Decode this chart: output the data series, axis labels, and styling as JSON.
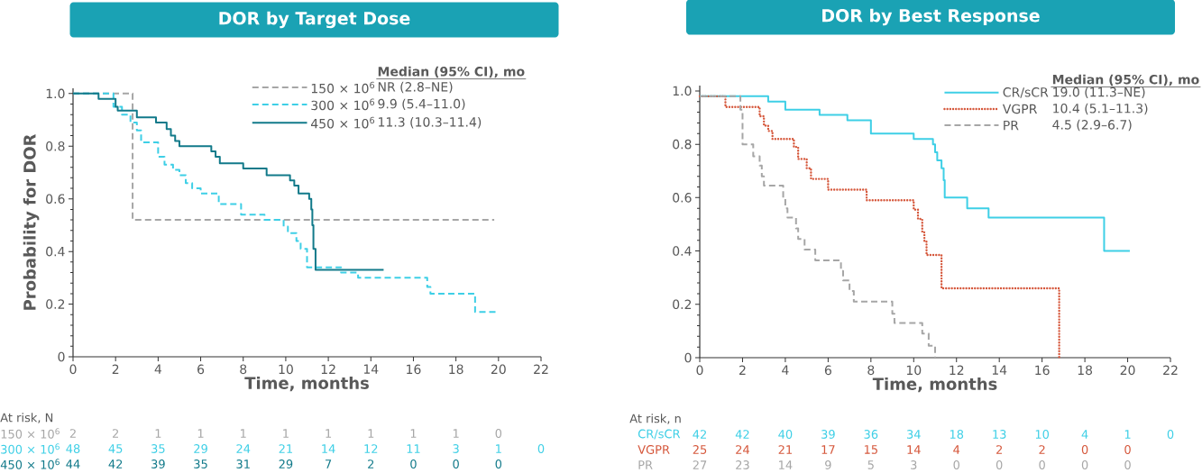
{
  "chart_data": [
    {
      "type": "step",
      "title": "DOR by Target Dose",
      "xlabel": "Time, months",
      "ylabel": "Probability for DOR",
      "legend_title": "Median (95% CI), mo",
      "legend": "top right",
      "xlim": [
        0,
        22
      ],
      "xticks": [
        0,
        2,
        4,
        6,
        8,
        10,
        12,
        14,
        16,
        18,
        20,
        22
      ],
      "ylim": [
        0,
        1.02
      ],
      "yticks": [
        0,
        0.2,
        0.4,
        0.6,
        0.8,
        {
          "value": 1,
          "label": "1.0"
        }
      ],
      "series": [
        {
          "name": "150 × 10$^{6}$",
          "color": "#a6a6a6",
          "line_style": "dashed",
          "x": [
            0,
            2.8,
            19.8
          ],
          "values": [
            1.0,
            0.52,
            0.52
          ]
        },
        {
          "name": "300 × 10$^{6}$",
          "color": "#3ecfe6",
          "line_style": "dashed",
          "x": [
            0,
            1.9,
            2.3,
            2.7,
            3.0,
            3.2,
            4.0,
            4.3,
            4.7,
            5.0,
            5.3,
            5.6,
            6.0,
            6.85,
            7.9,
            9.0,
            9.9,
            10.1,
            10.5,
            10.7,
            11.0,
            12.6,
            13.4,
            16.65,
            16.8,
            18.9,
            20.0
          ],
          "values": [
            1.0,
            0.95,
            0.92,
            0.89,
            0.86,
            0.815,
            0.76,
            0.73,
            0.71,
            0.69,
            0.66,
            0.64,
            0.62,
            0.58,
            0.54,
            0.52,
            0.495,
            0.47,
            0.44,
            0.41,
            0.34,
            0.32,
            0.3,
            0.265,
            0.24,
            0.17,
            0.17
          ]
        },
        {
          "name": "450 × 10$^{6}$",
          "color": "#127a8a",
          "line_style": "solid",
          "x": [
            0,
            1.2,
            2.0,
            2.1,
            3.0,
            3.9,
            4.4,
            4.6,
            4.8,
            5.0,
            6.5,
            6.7,
            6.9,
            8.0,
            9.1,
            10.2,
            10.4,
            10.6,
            11.1,
            11.2,
            11.25,
            11.3,
            11.4,
            14.6
          ],
          "values": [
            1.0,
            0.98,
            0.95,
            0.935,
            0.91,
            0.89,
            0.865,
            0.84,
            0.82,
            0.8,
            0.78,
            0.76,
            0.735,
            0.715,
            0.69,
            0.67,
            0.65,
            0.62,
            0.6,
            0.56,
            0.5,
            0.41,
            0.33,
            0.33
          ]
        }
      ],
      "annotations": [
        "NR (2.8–NE)",
        "9.9 (5.4–11.0)",
        "11.3 (10.3–11.4)",
        "At risk, N",
        "2",
        "2",
        "1",
        "1",
        "1",
        "1",
        "1",
        "1",
        "1",
        "1",
        "0",
        null,
        "48",
        "45",
        "35",
        "29",
        "24",
        "21",
        "14",
        "12",
        "11",
        "3",
        "1",
        "0",
        "44",
        "42",
        "39",
        "35",
        "31",
        "29",
        "7",
        "2",
        "0",
        "0",
        "0",
        null
      ]
    },
    {
      "type": "step",
      "title": "DOR by Best Response",
      "xlabel": "Time, months",
      "legend_title": "Median (95% CI), mo",
      "legend": "top right",
      "xlim": [
        0,
        22
      ],
      "xticks": [
        0,
        2,
        4,
        6,
        8,
        10,
        12,
        14,
        16,
        18,
        20,
        22
      ],
      "ylim": [
        0,
        1.02
      ],
      "yticks": [
        0,
        0.2,
        0.4,
        0.6,
        0.8,
        {
          "value": 1,
          "label": "1.0"
        }
      ],
      "series": [
        {
          "name": "CR/sCR",
          "color": "#3ecfe6",
          "line_style": "solid",
          "x": [
            0,
            3.2,
            4.0,
            5.6,
            6.9,
            8.0,
            10.0,
            10.9,
            11.0,
            11.1,
            11.3,
            11.4,
            11.45,
            12.5,
            13.5,
            18.9,
            20.1
          ],
          "values": [
            0.98,
            0.96,
            0.93,
            0.91,
            0.89,
            0.84,
            0.82,
            0.8,
            0.77,
            0.74,
            0.71,
            0.665,
            0.6,
            0.56,
            0.525,
            0.4,
            0.4
          ]
        },
        {
          "name": "VGPR",
          "color": "#d5573b",
          "line_style": "dotted",
          "x": [
            0,
            1.2,
            2.8,
            3.0,
            3.2,
            3.4,
            4.4,
            4.6,
            5.0,
            5.2,
            6.0,
            7.8,
            10.0,
            10.2,
            10.4,
            10.5,
            10.6,
            11.3,
            16.8
          ],
          "values": [
            0.98,
            0.94,
            0.905,
            0.87,
            0.85,
            0.82,
            0.79,
            0.745,
            0.71,
            0.67,
            0.63,
            0.59,
            0.555,
            0.52,
            0.47,
            0.435,
            0.385,
            0.26,
            0
          ]
        },
        {
          "name": "PR",
          "color": "#a6a6a6",
          "line_style": "dashed",
          "x": [
            0,
            1.9,
            2.0,
            2.5,
            2.8,
            2.9,
            3.0,
            3.9,
            4.0,
            4.1,
            4.5,
            4.6,
            4.9,
            5.4,
            6.6,
            6.7,
            7.0,
            7.2,
            9.0,
            9.1,
            10.4,
            10.7,
            11.0
          ],
          "values": [
            0.98,
            0.93,
            0.8,
            0.755,
            0.72,
            0.68,
            0.645,
            0.6,
            0.56,
            0.525,
            0.485,
            0.445,
            0.405,
            0.365,
            0.325,
            0.29,
            0.25,
            0.21,
            0.165,
            0.13,
            0.09,
            0.045,
            0
          ]
        }
      ],
      "annotations": [
        "19.0 (11.3–NE)",
        "10.4 (5.1–11.3)",
        "4.5 (2.9–6.7)",
        "At risk, n",
        "42",
        "42",
        "40",
        "39",
        "36",
        "34",
        "18",
        "13",
        "10",
        "4",
        "1",
        "0",
        "25",
        "24",
        "21",
        "17",
        "15",
        "14",
        "4",
        "2",
        "2",
        "0",
        "0",
        null,
        "27",
        "23",
        "14",
        "9",
        "5",
        "3",
        "0",
        "0",
        "0",
        "0",
        "0",
        null
      ]
    }
  ]
}
